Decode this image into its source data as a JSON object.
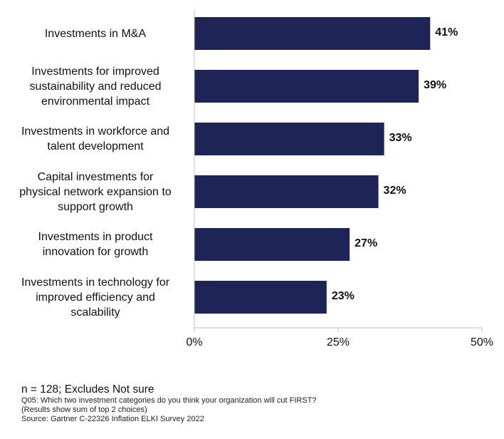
{
  "chart_data": {
    "type": "bar",
    "orientation": "horizontal",
    "categories": [
      "Investments in M&A",
      "Investments for improved sustainability and reduced environmental impact",
      "Investments in workforce and talent development",
      "Capital investments for physical network expansion to support growth",
      "Investments in product innovation for growth",
      "Investments in technology for improved efficiency and scalability"
    ],
    "category_lines": [
      [
        "Investments in M&A"
      ],
      [
        "Investments for improved",
        "sustainability and reduced",
        "environmental impact"
      ],
      [
        "Investments in workforce and",
        "talent development"
      ],
      [
        "Capital investments for",
        "physical network expansion to",
        "support growth"
      ],
      [
        "Investments in product",
        "innovation for growth"
      ],
      [
        "Investments in technology for",
        "improved efficiency and",
        "scalability"
      ]
    ],
    "values": [
      41,
      39,
      33,
      32,
      27,
      23
    ],
    "value_labels": [
      "41%",
      "39%",
      "33%",
      "32%",
      "27%",
      "23%"
    ],
    "xlim": [
      0,
      50
    ],
    "xticks": [
      0,
      25,
      50
    ],
    "xtick_labels": [
      "0%",
      "25%",
      "50%"
    ],
    "bar_color": "#1f2456",
    "axis_color": "#bfbfbf",
    "title": "",
    "xlabel": "",
    "ylabel": ""
  },
  "notes": {
    "sample": "n = 128; Excludes Not sure",
    "question": "Q05: Which two investment categories do you think your organization will cut FIRST?",
    "results": "(Results show sum of top 2 choices)",
    "source": "Source: Gartner C-22326 Inflation ELKI Survey 2022"
  }
}
